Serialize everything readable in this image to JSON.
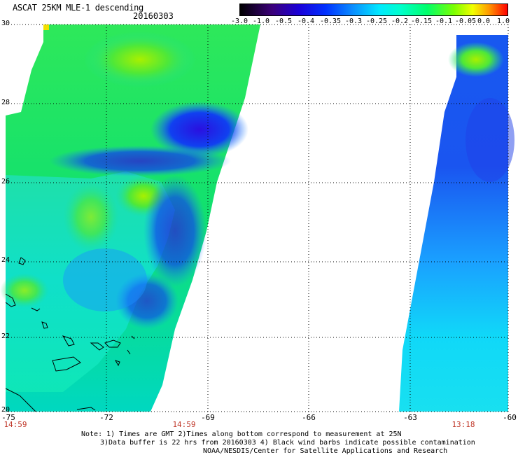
{
  "header": {
    "title": "ASCAT 25KM MLE-1 descending",
    "date": "20160303"
  },
  "colorbar": {
    "labels": [
      "-3.0",
      "-1.0",
      "-0.5",
      "-0.4",
      "-0.35",
      "-0.3",
      "-0.25",
      "-0.2",
      "-0.15",
      "-0.1",
      "-0.05",
      "0.0",
      "1.0"
    ]
  },
  "axes": {
    "y_labels": [
      "30",
      "28",
      "26",
      "24",
      "22",
      "20"
    ],
    "x_labels": [
      "-75",
      "-72",
      "-69",
      "-66",
      "-63",
      "-60"
    ],
    "pass_times": [
      "14:59",
      "14:59",
      "13:18"
    ]
  },
  "notes": {
    "line1": "Note: 1) Times are GMT 2)Times along bottom correspond to measurement at 25N",
    "line2": "3)Data buffer is 22 hrs from 20160303 4) Black wind barbs indicate possible contamination",
    "line3": "NOAA/NESDIS/Center for Satellite Applications and Research"
  }
}
